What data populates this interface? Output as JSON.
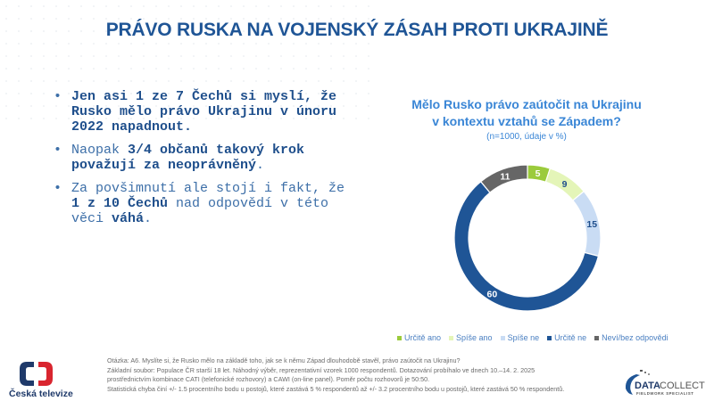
{
  "slide": {
    "title": "PRÁVO RUSKA NA VOJENSKÝ ZÁSAH PROTI UKRAJINĚ",
    "bullets": [
      {
        "parts": [
          {
            "text": "Jen asi 1 ze 7 Čechů si myslí, že Rusko mělo právo Ukrajinu v únoru 2022 napadnout.",
            "bold": true
          }
        ]
      },
      {
        "parts": [
          {
            "text": "Naopak ",
            "bold": false
          },
          {
            "text": "3/4 občanů takový krok považují za neoprávněný",
            "bold": true
          },
          {
            "text": ".",
            "bold": false
          }
        ]
      },
      {
        "parts": [
          {
            "text": "Za povšimnutí ale stojí i fakt, že ",
            "bold": false
          },
          {
            "text": "1 z 10 Čechů",
            "bold": true
          },
          {
            "text": " nad odpovědí v této věci ",
            "bold": false
          },
          {
            "text": "váhá",
            "bold": true
          },
          {
            "text": ".",
            "bold": false
          }
        ]
      }
    ],
    "bullet_b1": "Jen asi 1 ze 7 Čechů si myslí, že Rusko mělo právo Ukrajinu v únoru 2022 napadnout.",
    "b2_a": "Naopak ",
    "b2_b": "3/4 občanů takový krok považují za neoprávněný",
    "b2_c": ".",
    "b3_a": "Za povšimnutí ale stojí i fakt, že ",
    "b3_b": "1 z 10 Čechů",
    "b3_c": " nad odpovědí v této věci ",
    "b3_d": "váhá",
    "b3_e": ".",
    "bullet_glyph": "•"
  },
  "chart_data": {
    "type": "pie",
    "subtype": "donut",
    "title": "Mělo Rusko právo zaútočit na Ukrajinu v kontextu vztahů se Západem?",
    "title_line1": "Mělo Rusko právo zaútočit na Ukrajinu",
    "title_line2": "v kontextu vztahů se Západem?",
    "subtitle": "(n=1000, údaje v %)",
    "categories": [
      "Určitě ano",
      "Spíše ano",
      "Spíše ne",
      "Určitě ne",
      "Neví/bez odpovědi"
    ],
    "values": [
      5,
      9,
      15,
      60,
      11
    ],
    "colors": [
      "#9bcb3c",
      "#e4f5b8",
      "#c9dcf4",
      "#1f5596",
      "#666666"
    ],
    "label_colors": [
      "#ffffff",
      "#1f4f8c",
      "#1f4f8c",
      "#ffffff",
      "#ffffff"
    ],
    "legend_position": "bottom",
    "start_angle_deg": 0,
    "direction": "clockwise"
  },
  "footnote": {
    "line1": "Otázka: A6. Myslíte si, že Rusko mělo na základě toho, jak se k němu Západ dlouhodobě stavěl, právo zaútočit na Ukrajinu?",
    "line2": "Základní soubor: Populace ČR starší 18 let. Náhodný výběr, reprezentativní vzorek 1000 respondentů. Dotazování probíhalo ve dnech 10.–14. 2. 2025",
    "line3": "prostřednictvím kombinace CATI (telefonické rozhovory) a CAWI (on-line panel). Poměr počtu rozhovorů je 50:50.",
    "line4": "Statistická chyba činí +/- 1.5 procentního bodu u postojů, které zastává 5 % respondentů až +/- 3.2 procentního bodu u postojů, které zastává 50 % respondentů."
  },
  "logos": {
    "left_name": "Česká televize",
    "right_name_bold": "DATA",
    "right_name_light": "COLLECT",
    "right_tagline": "FIELDWORK SPECIALIST"
  }
}
